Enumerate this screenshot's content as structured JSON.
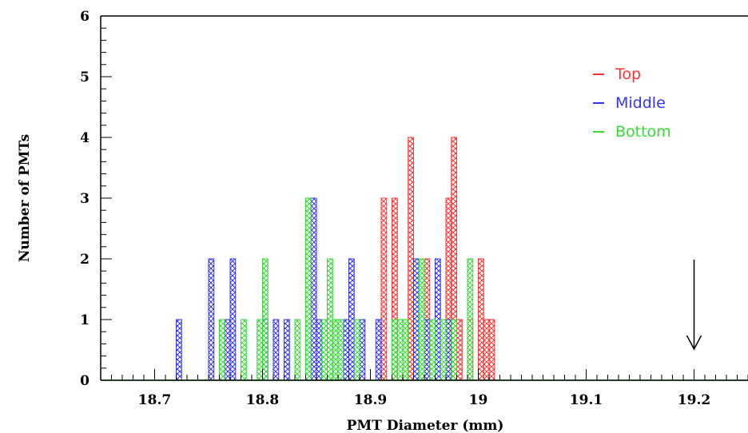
{
  "chart_data": {
    "type": "bar",
    "subtype": "overlaid-histogram",
    "xlabel": "PMT Diameter (mm)",
    "ylabel": "Number of PMTs",
    "xlim": [
      18.65,
      19.25
    ],
    "ylim": [
      0,
      6
    ],
    "bin_width": 0.005,
    "x_ticks": [
      18.7,
      18.8,
      18.9,
      19.0,
      19.1,
      19.2
    ],
    "x_tick_labels": [
      "18.7",
      "18.8",
      "18.9",
      "19",
      "19.1",
      "19.2"
    ],
    "y_ticks": [
      0,
      1,
      2,
      3,
      4,
      5,
      6
    ],
    "y_tick_labels": [
      "0",
      "1",
      "2",
      "3",
      "4",
      "5",
      "6"
    ],
    "grid": false,
    "legend_position": "top-right",
    "series": [
      {
        "name": "Top",
        "color": "#ff3333",
        "bins": [
          {
            "x": 18.91,
            "y": 3
          },
          {
            "x": 18.92,
            "y": 3
          },
          {
            "x": 18.935,
            "y": 4
          },
          {
            "x": 18.95,
            "y": 2
          },
          {
            "x": 18.97,
            "y": 3
          },
          {
            "x": 18.975,
            "y": 4
          },
          {
            "x": 18.98,
            "y": 1
          },
          {
            "x": 18.99,
            "y": 1
          },
          {
            "x": 19.0,
            "y": 2
          },
          {
            "x": 19.005,
            "y": 1
          },
          {
            "x": 19.01,
            "y": 1
          }
        ]
      },
      {
        "name": "Middle",
        "color": "#3333ff",
        "bins": [
          {
            "x": 18.72,
            "y": 1
          },
          {
            "x": 18.75,
            "y": 2
          },
          {
            "x": 18.765,
            "y": 1
          },
          {
            "x": 18.77,
            "y": 2
          },
          {
            "x": 18.8,
            "y": 1
          },
          {
            "x": 18.81,
            "y": 1
          },
          {
            "x": 18.82,
            "y": 1
          },
          {
            "x": 18.845,
            "y": 3
          },
          {
            "x": 18.85,
            "y": 1
          },
          {
            "x": 18.875,
            "y": 1
          },
          {
            "x": 18.88,
            "y": 2
          },
          {
            "x": 18.89,
            "y": 1
          },
          {
            "x": 18.905,
            "y": 1
          },
          {
            "x": 18.94,
            "y": 2
          },
          {
            "x": 18.95,
            "y": 1
          },
          {
            "x": 18.96,
            "y": 2
          },
          {
            "x": 18.97,
            "y": 1
          }
        ]
      },
      {
        "name": "Bottom",
        "color": "#33dd33",
        "bins": [
          {
            "x": 18.76,
            "y": 1
          },
          {
            "x": 18.78,
            "y": 1
          },
          {
            "x": 18.795,
            "y": 1
          },
          {
            "x": 18.8,
            "y": 2
          },
          {
            "x": 18.83,
            "y": 1
          },
          {
            "x": 18.84,
            "y": 3
          },
          {
            "x": 18.855,
            "y": 1
          },
          {
            "x": 18.86,
            "y": 2
          },
          {
            "x": 18.865,
            "y": 1
          },
          {
            "x": 18.87,
            "y": 1
          },
          {
            "x": 18.885,
            "y": 1
          },
          {
            "x": 18.92,
            "y": 1
          },
          {
            "x": 18.925,
            "y": 1
          },
          {
            "x": 18.93,
            "y": 1
          },
          {
            "x": 18.945,
            "y": 2
          },
          {
            "x": 18.955,
            "y": 1
          },
          {
            "x": 18.965,
            "y": 1
          },
          {
            "x": 18.975,
            "y": 1
          },
          {
            "x": 18.99,
            "y": 2
          }
        ]
      }
    ],
    "annotation": {
      "type": "arrow",
      "x": 19.2,
      "direction": "down"
    }
  }
}
